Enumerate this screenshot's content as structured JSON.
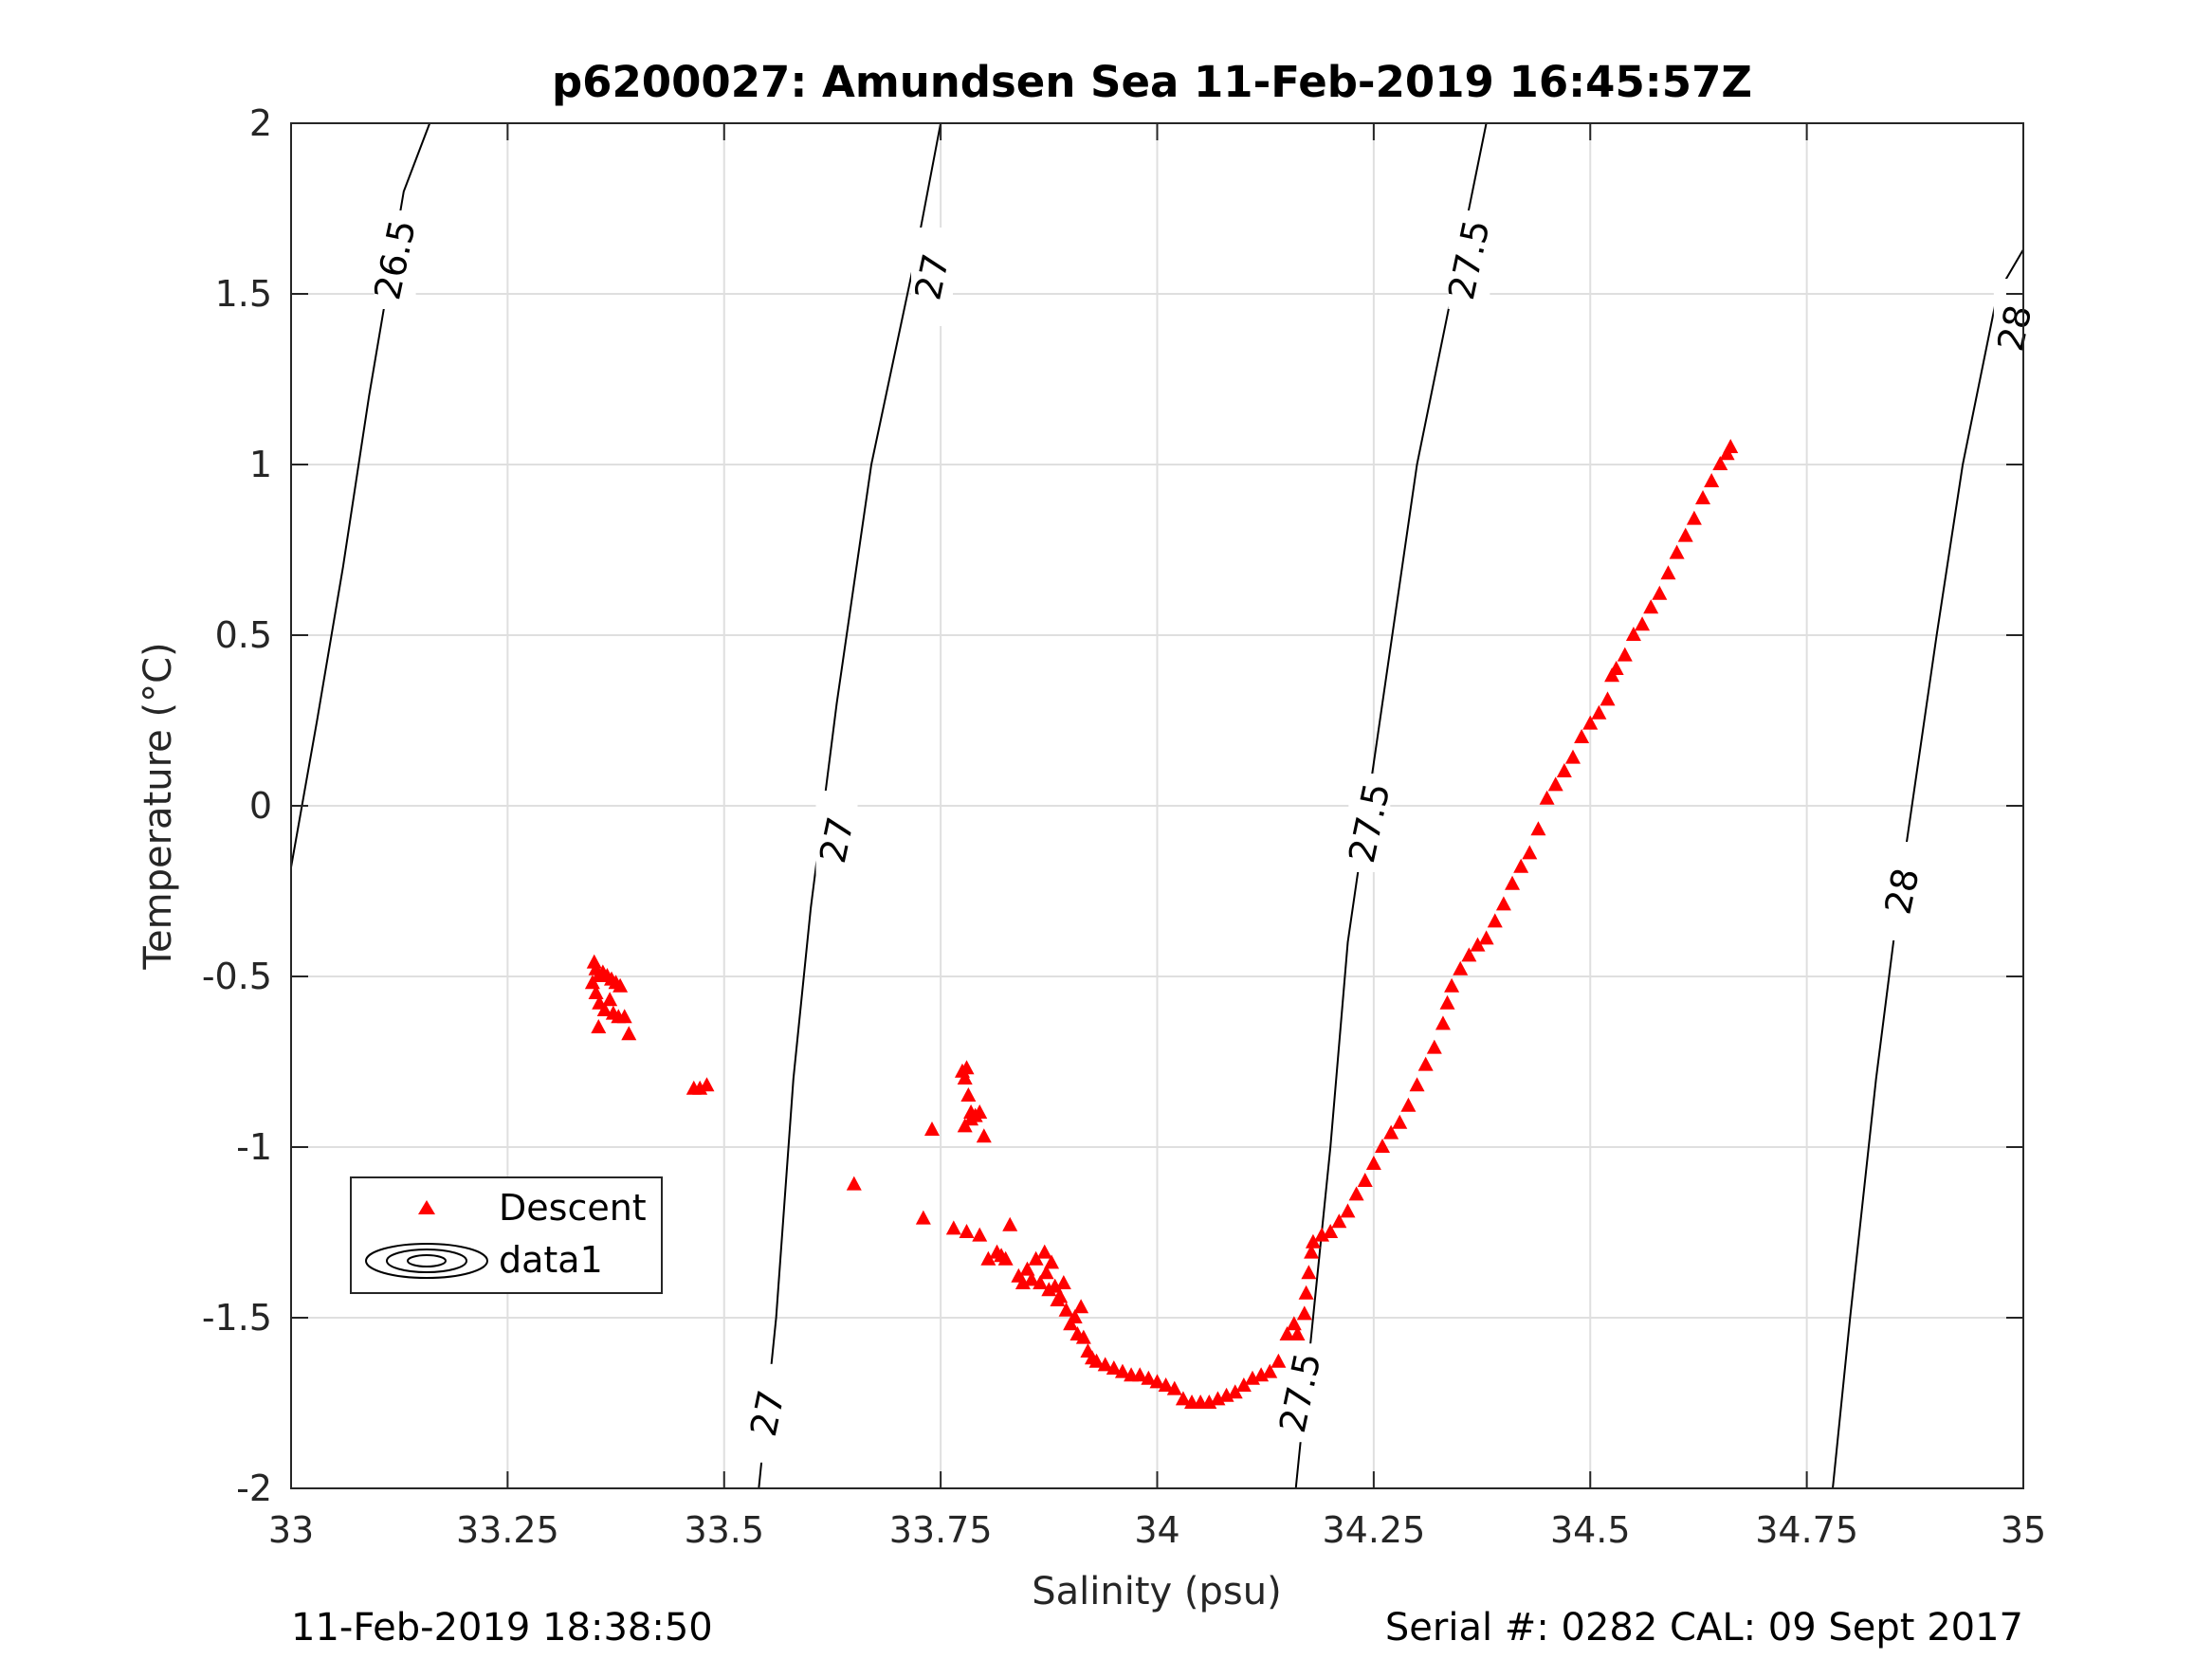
{
  "chart_data": {
    "type": "scatter",
    "title": "p6200027: Amundsen Sea 11-Feb-2019 16:45:57Z",
    "xlabel": "Salinity (psu)",
    "ylabel": "Temperature (°C)",
    "xlim": [
      33,
      35
    ],
    "ylim": [
      -2,
      2
    ],
    "xticks": [
      33,
      33.25,
      33.5,
      33.75,
      34,
      34.25,
      34.5,
      34.75,
      35
    ],
    "xtick_labels": [
      "33",
      "33.25",
      "33.5",
      "33.75",
      "34",
      "34.25",
      "34.5",
      "34.75",
      "35"
    ],
    "yticks": [
      -2,
      -1.5,
      -1,
      -0.5,
      0,
      0.5,
      1,
      1.5,
      2
    ],
    "ytick_labels": [
      "-2",
      "-1.5",
      "-1",
      "-0.5",
      "0",
      "0.5",
      "1",
      "1.5",
      "2"
    ],
    "grid": true,
    "legend_position": "lower-left",
    "series": [
      {
        "name": "Descent",
        "marker": "triangle",
        "color": "#ff0000",
        "points": [
          [
            33.35,
            -0.46
          ],
          [
            33.352,
            -0.48
          ],
          [
            33.355,
            -0.5
          ],
          [
            33.36,
            -0.49
          ],
          [
            33.365,
            -0.5
          ],
          [
            33.37,
            -0.51
          ],
          [
            33.375,
            -0.52
          ],
          [
            33.38,
            -0.53
          ],
          [
            33.348,
            -0.52
          ],
          [
            33.352,
            -0.55
          ],
          [
            33.356,
            -0.58
          ],
          [
            33.362,
            -0.6
          ],
          [
            33.368,
            -0.57
          ],
          [
            33.372,
            -0.61
          ],
          [
            33.378,
            -0.62
          ],
          [
            33.355,
            -0.65
          ],
          [
            33.39,
            -0.67
          ],
          [
            33.385,
            -0.62
          ],
          [
            33.465,
            -0.83
          ],
          [
            33.472,
            -0.83
          ],
          [
            33.48,
            -0.82
          ],
          [
            33.65,
            -1.11
          ],
          [
            33.73,
            -1.21
          ],
          [
            33.74,
            -0.95
          ],
          [
            33.775,
            -0.78
          ],
          [
            33.78,
            -0.77
          ],
          [
            33.778,
            -0.8
          ],
          [
            33.782,
            -0.85
          ],
          [
            33.785,
            -0.9
          ],
          [
            33.79,
            -0.91
          ],
          [
            33.795,
            -0.9
          ],
          [
            33.778,
            -0.94
          ],
          [
            33.785,
            -0.92
          ],
          [
            33.8,
            -0.97
          ],
          [
            33.765,
            -1.24
          ],
          [
            33.78,
            -1.25
          ],
          [
            33.795,
            -1.26
          ],
          [
            33.805,
            -1.33
          ],
          [
            33.815,
            -1.31
          ],
          [
            33.82,
            -1.32
          ],
          [
            33.825,
            -1.33
          ],
          [
            33.83,
            -1.23
          ],
          [
            33.84,
            -1.38
          ],
          [
            33.845,
            -1.4
          ],
          [
            33.85,
            -1.36
          ],
          [
            33.855,
            -1.39
          ],
          [
            33.86,
            -1.33
          ],
          [
            33.865,
            -1.4
          ],
          [
            33.87,
            -1.31
          ],
          [
            33.872,
            -1.37
          ],
          [
            33.875,
            -1.42
          ],
          [
            33.878,
            -1.34
          ],
          [
            33.882,
            -1.41
          ],
          [
            33.885,
            -1.45
          ],
          [
            33.888,
            -1.44
          ],
          [
            33.892,
            -1.4
          ],
          [
            33.895,
            -1.48
          ],
          [
            33.9,
            -1.52
          ],
          [
            33.905,
            -1.5
          ],
          [
            33.908,
            -1.55
          ],
          [
            33.912,
            -1.47
          ],
          [
            33.915,
            -1.56
          ],
          [
            33.92,
            -1.6
          ],
          [
            33.925,
            -1.62
          ],
          [
            33.93,
            -1.63
          ],
          [
            33.94,
            -1.64
          ],
          [
            33.95,
            -1.65
          ],
          [
            33.96,
            -1.66
          ],
          [
            33.97,
            -1.67
          ],
          [
            33.98,
            -1.67
          ],
          [
            33.99,
            -1.68
          ],
          [
            34.0,
            -1.69
          ],
          [
            34.01,
            -1.7
          ],
          [
            34.02,
            -1.71
          ],
          [
            34.03,
            -1.74
          ],
          [
            34.04,
            -1.75
          ],
          [
            34.05,
            -1.75
          ],
          [
            34.06,
            -1.75
          ],
          [
            34.07,
            -1.74
          ],
          [
            34.08,
            -1.73
          ],
          [
            34.09,
            -1.72
          ],
          [
            34.1,
            -1.7
          ],
          [
            34.11,
            -1.68
          ],
          [
            34.12,
            -1.67
          ],
          [
            34.13,
            -1.66
          ],
          [
            34.14,
            -1.63
          ],
          [
            34.15,
            -1.55
          ],
          [
            34.158,
            -1.52
          ],
          [
            34.162,
            -1.55
          ],
          [
            34.17,
            -1.49
          ],
          [
            34.172,
            -1.43
          ],
          [
            34.175,
            -1.37
          ],
          [
            34.178,
            -1.31
          ],
          [
            34.18,
            -1.28
          ],
          [
            34.19,
            -1.26
          ],
          [
            34.2,
            -1.25
          ],
          [
            34.21,
            -1.22
          ],
          [
            34.22,
            -1.19
          ],
          [
            34.23,
            -1.14
          ],
          [
            34.24,
            -1.1
          ],
          [
            34.25,
            -1.05
          ],
          [
            34.26,
            -1.0
          ],
          [
            34.27,
            -0.96
          ],
          [
            34.28,
            -0.93
          ],
          [
            34.29,
            -0.88
          ],
          [
            34.3,
            -0.82
          ],
          [
            34.31,
            -0.76
          ],
          [
            34.32,
            -0.71
          ],
          [
            34.33,
            -0.64
          ],
          [
            34.335,
            -0.58
          ],
          [
            34.34,
            -0.53
          ],
          [
            34.35,
            -0.48
          ],
          [
            34.36,
            -0.44
          ],
          [
            34.37,
            -0.41
          ],
          [
            34.38,
            -0.39
          ],
          [
            34.39,
            -0.34
          ],
          [
            34.4,
            -0.29
          ],
          [
            34.41,
            -0.23
          ],
          [
            34.42,
            -0.18
          ],
          [
            34.43,
            -0.14
          ],
          [
            34.44,
            -0.07
          ],
          [
            34.45,
            0.02
          ],
          [
            34.46,
            0.06
          ],
          [
            34.47,
            0.1
          ],
          [
            34.48,
            0.14
          ],
          [
            34.49,
            0.2
          ],
          [
            34.5,
            0.24
          ],
          [
            34.51,
            0.27
          ],
          [
            34.52,
            0.31
          ],
          [
            34.525,
            0.38
          ],
          [
            34.53,
            0.4
          ],
          [
            34.54,
            0.44
          ],
          [
            34.55,
            0.5
          ],
          [
            34.56,
            0.53
          ],
          [
            34.57,
            0.58
          ],
          [
            34.58,
            0.62
          ],
          [
            34.59,
            0.68
          ],
          [
            34.6,
            0.74
          ],
          [
            34.61,
            0.79
          ],
          [
            34.62,
            0.84
          ],
          [
            34.63,
            0.9
          ],
          [
            34.64,
            0.95
          ],
          [
            34.65,
            1.0
          ],
          [
            34.658,
            1.03
          ],
          [
            34.662,
            1.05
          ]
        ]
      },
      {
        "name": "data1",
        "style": "contour",
        "color": "#000000",
        "isopycnals": [
          {
            "level": "26.5",
            "points": [
              [
                33.0,
                -0.18
              ],
              [
                33.03,
                0.25
              ],
              [
                33.06,
                0.7
              ],
              [
                33.09,
                1.2
              ],
              [
                33.11,
                1.5
              ],
              [
                33.13,
                1.8
              ],
              [
                33.16,
                2.0
              ]
            ]
          },
          {
            "level": "27",
            "points": [
              [
                33.54,
                -2.0
              ],
              [
                33.56,
                -1.5
              ],
              [
                33.58,
                -0.8
              ],
              [
                33.6,
                -0.3
              ],
              [
                33.63,
                0.3
              ],
              [
                33.67,
                1.0
              ],
              [
                33.72,
                1.6
              ],
              [
                33.75,
                2.0
              ]
            ]
          },
          {
            "level": "27.5",
            "points": [
              [
                34.16,
                -2.0
              ],
              [
                34.18,
                -1.5
              ],
              [
                34.2,
                -1.0
              ],
              [
                34.22,
                -0.4
              ],
              [
                34.26,
                0.3
              ],
              [
                34.3,
                1.0
              ],
              [
                34.34,
                1.5
              ],
              [
                34.38,
                2.0
              ]
            ]
          },
          {
            "level": "28",
            "points": [
              [
                34.78,
                -2.0
              ],
              [
                34.8,
                -1.5
              ],
              [
                34.83,
                -0.8
              ],
              [
                34.86,
                -0.2
              ],
              [
                34.9,
                0.5
              ],
              [
                34.93,
                1.0
              ],
              [
                34.97,
                1.5
              ],
              [
                35.0,
                1.63
              ]
            ]
          }
        ],
        "labels": [
          {
            "text": "26.5",
            "at": [
              33.12,
              1.6
            ]
          },
          {
            "text": "27",
            "at": [
              33.74,
              1.55
            ]
          },
          {
            "text": "27",
            "at": [
              33.63,
              -0.1
            ]
          },
          {
            "text": "27",
            "at": [
              33.55,
              -1.78
            ]
          },
          {
            "text": "27.5",
            "at": [
              34.36,
              1.6
            ]
          },
          {
            "text": "27.5",
            "at": [
              34.245,
              -0.05
            ]
          },
          {
            "text": "27.5",
            "at": [
              34.165,
              -1.72
            ]
          },
          {
            "text": "28",
            "at": [
              34.99,
              1.4
            ]
          },
          {
            "text": "28",
            "at": [
              34.86,
              -0.25
            ]
          }
        ]
      }
    ]
  },
  "footer": {
    "left": "11-Feb-2019 18:38:50",
    "right": "Serial #: 0282  CAL: 09 Sept 2017"
  },
  "legend": {
    "entries": [
      "Descent",
      "data1"
    ]
  }
}
